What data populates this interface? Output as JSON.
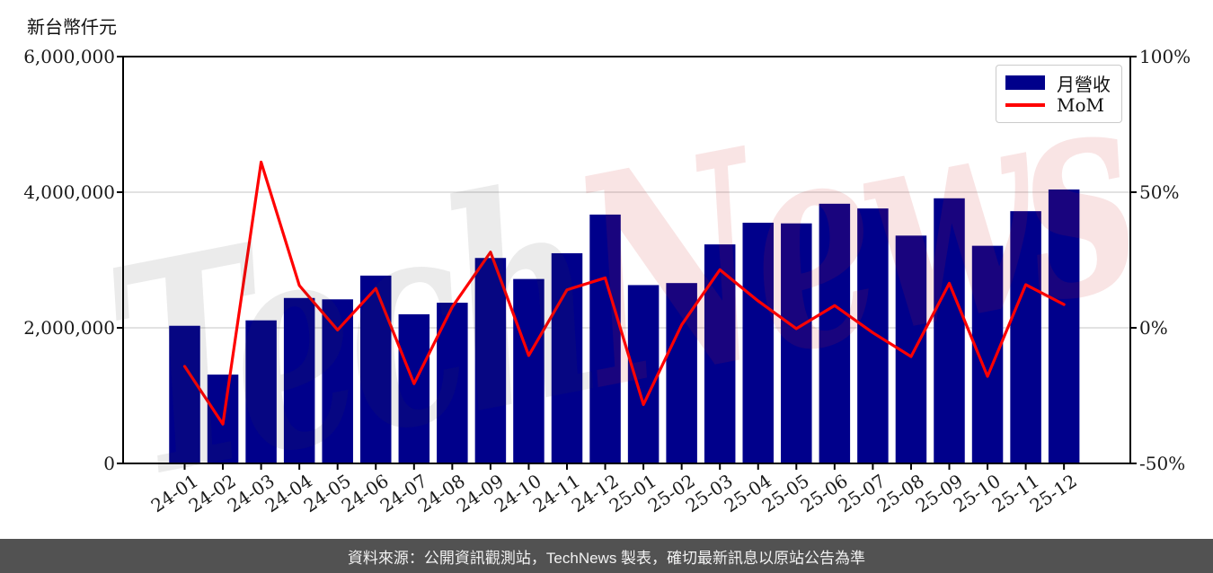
{
  "title": "新台幣仟元",
  "legend": {
    "items": [
      {
        "label": "月營收",
        "type": "bar"
      },
      {
        "label": "MoM",
        "type": "line"
      }
    ]
  },
  "watermark": {
    "part_gray": "Tech",
    "part_pink": "News"
  },
  "footer": {
    "text": "資料來源：公開資訊觀測站，TechNews 製表，確切最新訊息以原站公告為準"
  },
  "colors": {
    "bar": "#00008B",
    "line": "#FF0000",
    "grid": "#D8D8D8",
    "axis": "#000000",
    "tick_text": "#1A1A1A",
    "footer_bg": "#525252",
    "footer_text": "#F2F2F2",
    "legend_border": "#CBCBCB"
  },
  "chart_data": {
    "type": "bar",
    "title": "新台幣仟元",
    "categories": [
      "24-01",
      "24-02",
      "24-03",
      "24-04",
      "24-05",
      "24-06",
      "24-07",
      "24-08",
      "24-09",
      "24-10",
      "24-11",
      "24-12",
      "25-01",
      "25-02",
      "25-03",
      "25-04",
      "25-05",
      "25-06",
      "25-07",
      "25-08",
      "25-09",
      "25-10",
      "25-11",
      "25-12"
    ],
    "series": [
      {
        "name": "月營收",
        "type": "bar",
        "axis": "left",
        "unit": "新台幣仟元",
        "values": [
          2030000,
          1310000,
          2110000,
          2440000,
          2420000,
          2770000,
          2200000,
          2370000,
          3030000,
          2720000,
          3100000,
          3670000,
          2630000,
          2660000,
          3230000,
          3550000,
          3540000,
          3830000,
          3760000,
          3360000,
          3910000,
          3210000,
          3720000,
          4040000
        ]
      },
      {
        "name": "MoM",
        "type": "line",
        "axis": "right",
        "unit": "%",
        "values": [
          -14.2,
          -35.5,
          61.1,
          15.6,
          -0.8,
          14.5,
          -20.6,
          7.7,
          27.9,
          -10.2,
          14.0,
          18.4,
          -28.3,
          1.1,
          21.4,
          9.9,
          -0.3,
          8.2,
          -1.8,
          -10.6,
          16.4,
          -17.9,
          15.9,
          8.6
        ]
      }
    ],
    "left_axis": {
      "label": "新台幣仟元",
      "tick_labels": [
        "0",
        "2,000,000",
        "4,000,000",
        "6,000,000"
      ],
      "tick_values": [
        0,
        2000000,
        4000000,
        6000000
      ],
      "range": [
        0,
        6000000
      ]
    },
    "right_axis": {
      "tick_labels": [
        "-50%",
        "0%",
        "50%",
        "100%"
      ],
      "tick_values": [
        -50,
        0,
        50,
        100
      ],
      "range": [
        -50,
        100
      ]
    },
    "grid": "horizontal-inner-ticks",
    "legend_position": "upper right"
  }
}
